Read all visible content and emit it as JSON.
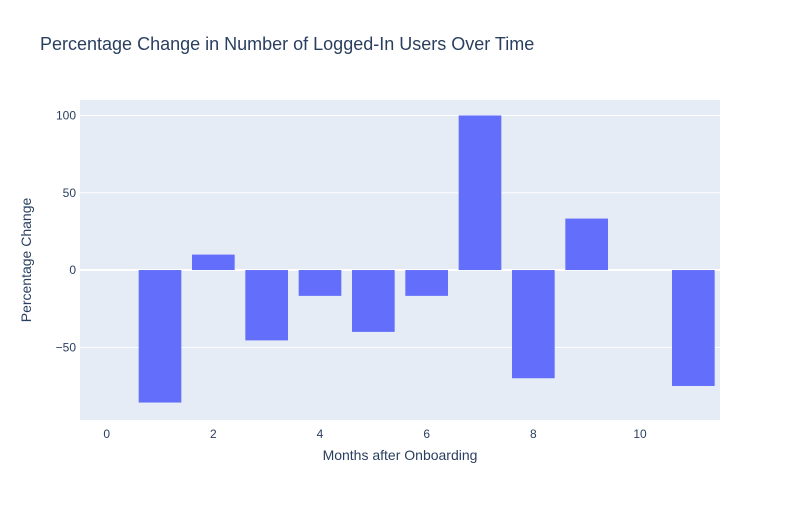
{
  "chart_data": {
    "type": "bar",
    "title": "Percentage Change in Number of Logged-In Users Over Time",
    "xlabel": "Months after Onboarding",
    "ylabel": "Percentage Change",
    "x": [
      1,
      2,
      3,
      4,
      5,
      6,
      7,
      8,
      9,
      10,
      11
    ],
    "values": [
      -85.7,
      10,
      -45.5,
      -16.7,
      -40,
      -16.7,
      100,
      -70,
      33.3,
      0,
      -75
    ],
    "xlim": [
      -0.5,
      11.5
    ],
    "ylim": [
      -97,
      110
    ],
    "xticks": [
      0,
      2,
      4,
      6,
      8,
      10
    ],
    "yticks": [
      -50,
      0,
      50,
      100
    ],
    "ytick_labels": [
      "−50",
      "0",
      "50",
      "100"
    ],
    "grid": true,
    "colors": {
      "bar": "#636efa",
      "plot_bg": "#e5ecf6",
      "grid": "#ffffff",
      "text": "#2a3f5f"
    }
  }
}
